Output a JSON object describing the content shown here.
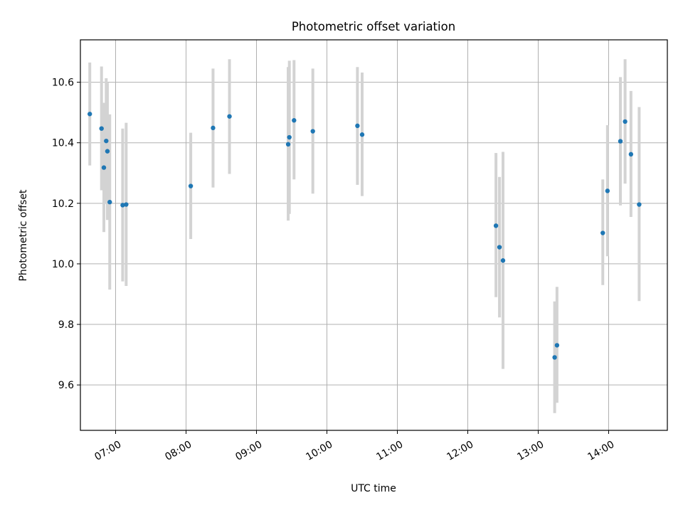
{
  "chart_data": {
    "type": "scatter",
    "title": "Photometric offset variation",
    "xlabel": "UTC time",
    "ylabel": "Photometric offset",
    "xlim": [
      "06:30",
      "14:50"
    ],
    "ylim": [
      9.45,
      10.74
    ],
    "x_ticks": [
      "07:00",
      "08:00",
      "09:00",
      "10:00",
      "11:00",
      "12:00",
      "13:00",
      "14:00"
    ],
    "y_ticks": [
      "9.6",
      "9.8",
      "10.0",
      "10.2",
      "10.4",
      "10.6"
    ],
    "grid": true,
    "series": [
      {
        "marker_color": "#1f77b4",
        "errorbar_color": "#d3d3d3",
        "points": [
          {
            "x": "06:38",
            "y": 10.495,
            "err_low": 10.325,
            "err_high": 10.665
          },
          {
            "x": "06:48",
            "y": 10.447,
            "err_low": 10.243,
            "err_high": 10.652
          },
          {
            "x": "06:50",
            "y": 10.318,
            "err_low": 10.105,
            "err_high": 10.532
          },
          {
            "x": "06:52",
            "y": 10.406,
            "err_low": 10.2,
            "err_high": 10.613
          },
          {
            "x": "06:53",
            "y": 10.372,
            "err_low": 10.145,
            "err_high": 10.598
          },
          {
            "x": "06:55",
            "y": 10.204,
            "err_low": 9.915,
            "err_high": 10.494
          },
          {
            "x": "07:06",
            "y": 10.194,
            "err_low": 9.942,
            "err_high": 10.447
          },
          {
            "x": "07:09",
            "y": 10.196,
            "err_low": 9.927,
            "err_high": 10.466
          },
          {
            "x": "08:04",
            "y": 10.257,
            "err_low": 10.082,
            "err_high": 10.433
          },
          {
            "x": "08:23",
            "y": 10.449,
            "err_low": 10.252,
            "err_high": 10.645
          },
          {
            "x": "08:37",
            "y": 10.487,
            "err_low": 10.297,
            "err_high": 10.676
          },
          {
            "x": "09:27",
            "y": 10.395,
            "err_low": 10.143,
            "err_high": 10.65
          },
          {
            "x": "09:28",
            "y": 10.418,
            "err_low": 10.165,
            "err_high": 10.671
          },
          {
            "x": "09:32",
            "y": 10.474,
            "err_low": 10.279,
            "err_high": 10.673
          },
          {
            "x": "09:48",
            "y": 10.438,
            "err_low": 10.232,
            "err_high": 10.645
          },
          {
            "x": "10:26",
            "y": 10.456,
            "err_low": 10.261,
            "err_high": 10.65
          },
          {
            "x": "10:30",
            "y": 10.427,
            "err_low": 10.224,
            "err_high": 10.632
          },
          {
            "x": "12:24",
            "y": 10.126,
            "err_low": 9.89,
            "err_high": 10.366
          },
          {
            "x": "12:27",
            "y": 10.055,
            "err_low": 9.823,
            "err_high": 10.287
          },
          {
            "x": "12:30",
            "y": 10.011,
            "err_low": 9.653,
            "err_high": 10.37
          },
          {
            "x": "13:14",
            "y": 9.691,
            "err_low": 9.507,
            "err_high": 9.876
          },
          {
            "x": "13:16",
            "y": 9.731,
            "err_low": 9.541,
            "err_high": 9.924
          },
          {
            "x": "13:55",
            "y": 10.102,
            "err_low": 9.93,
            "err_high": 10.279
          },
          {
            "x": "13:59",
            "y": 10.241,
            "err_low": 10.025,
            "err_high": 10.458
          },
          {
            "x": "14:10",
            "y": 10.405,
            "err_low": 10.193,
            "err_high": 10.617
          },
          {
            "x": "14:14",
            "y": 10.47,
            "err_low": 10.265,
            "err_high": 10.676
          },
          {
            "x": "14:19",
            "y": 10.362,
            "err_low": 10.155,
            "err_high": 10.571
          },
          {
            "x": "14:26",
            "y": 10.196,
            "err_low": 9.877,
            "err_high": 10.518
          }
        ]
      }
    ]
  }
}
